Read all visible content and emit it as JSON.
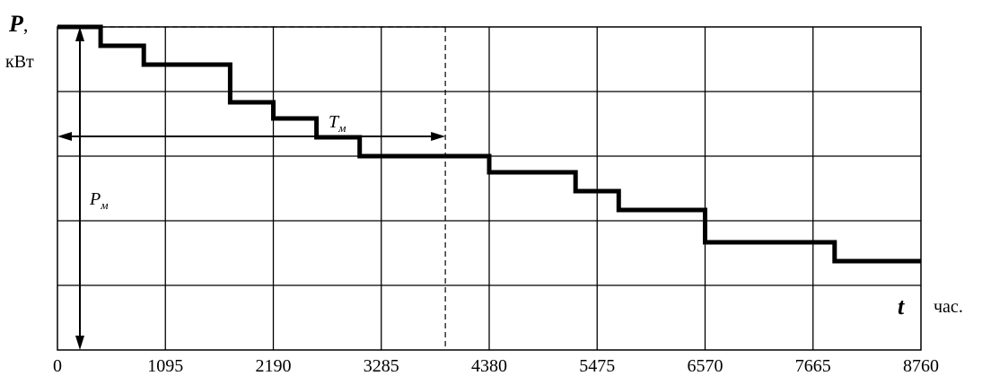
{
  "chart_data": {
    "type": "line",
    "step": true,
    "x_ticks": [
      "0",
      "1095",
      "2190",
      "3285",
      "4380",
      "5475",
      "6570",
      "7665",
      "8760"
    ],
    "xlim": [
      0,
      8760
    ],
    "ylim": [
      0,
      6
    ],
    "grid": true,
    "y_label": "P",
    "y_label_comma": ",",
    "y_unit": "кВт",
    "x_label": "t",
    "x_unit": "час.",
    "series": [
      {
        "x": [
          0,
          438,
          876,
          1752,
          2190,
          2628,
          3066,
          4380,
          5256,
          5694,
          6570,
          7884,
          8760
        ],
        "y": [
          6.0,
          5.65,
          5.3,
          4.6,
          4.3,
          3.95,
          3.6,
          3.3,
          2.95,
          2.6,
          2.0,
          1.65,
          1.65
        ]
      }
    ],
    "annotations": {
      "Tm": {
        "main": "T",
        "sub": "м",
        "x_value": 3935
      },
      "Pm": {
        "main": "P",
        "sub": "м",
        "y_value": 6.0
      }
    }
  }
}
